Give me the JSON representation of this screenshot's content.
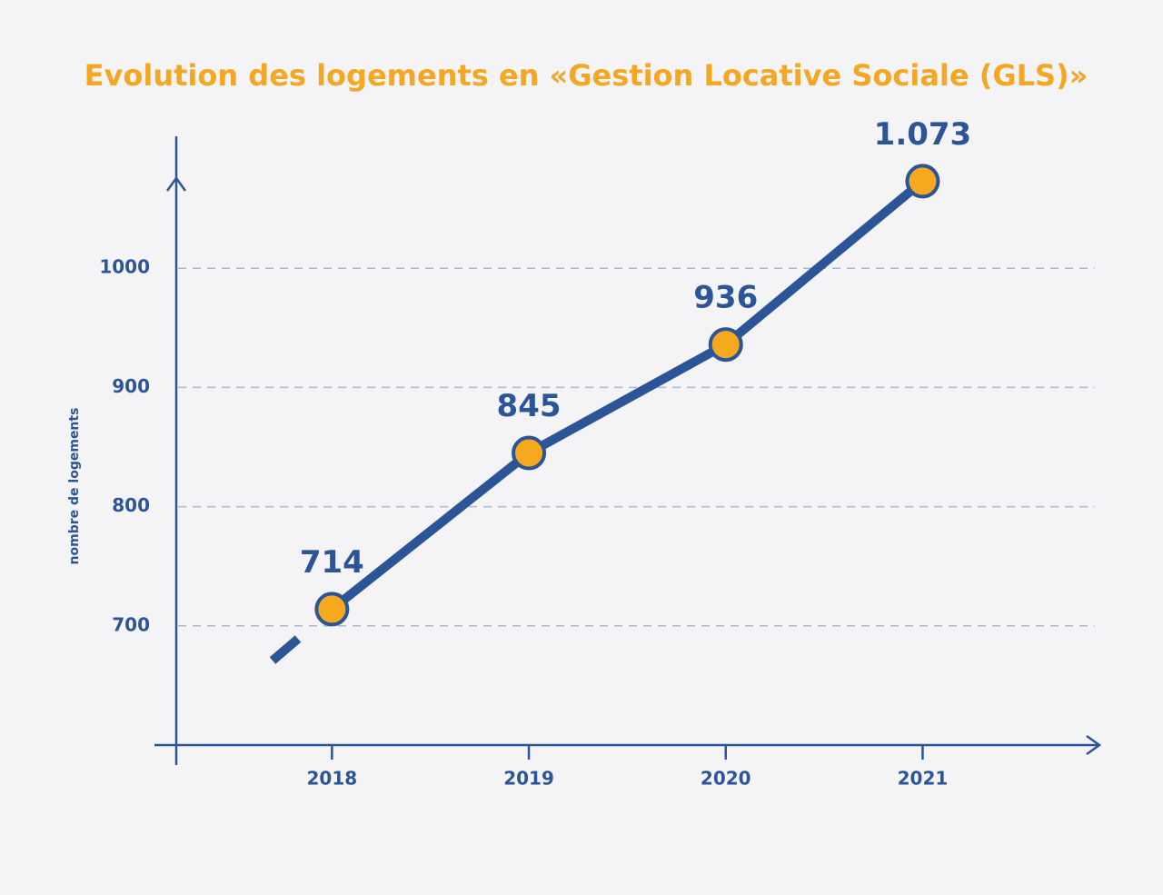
{
  "chart_data": {
    "type": "line",
    "title": "Evolution des logements en «Gestion Locative Sociale (GLS)»",
    "y_label": "nombre de logements",
    "categories": [
      "2018",
      "2019",
      "2020",
      "2021"
    ],
    "values": [
      714,
      845,
      936,
      1073
    ],
    "value_labels": [
      "714",
      "845",
      "936",
      "1.073"
    ],
    "color": "#2c5597",
    "marker_color": "#f6a91f",
    "ylim": [
      600,
      1100
    ],
    "yticks": [
      700,
      800,
      900,
      1000
    ],
    "grid": true
  }
}
